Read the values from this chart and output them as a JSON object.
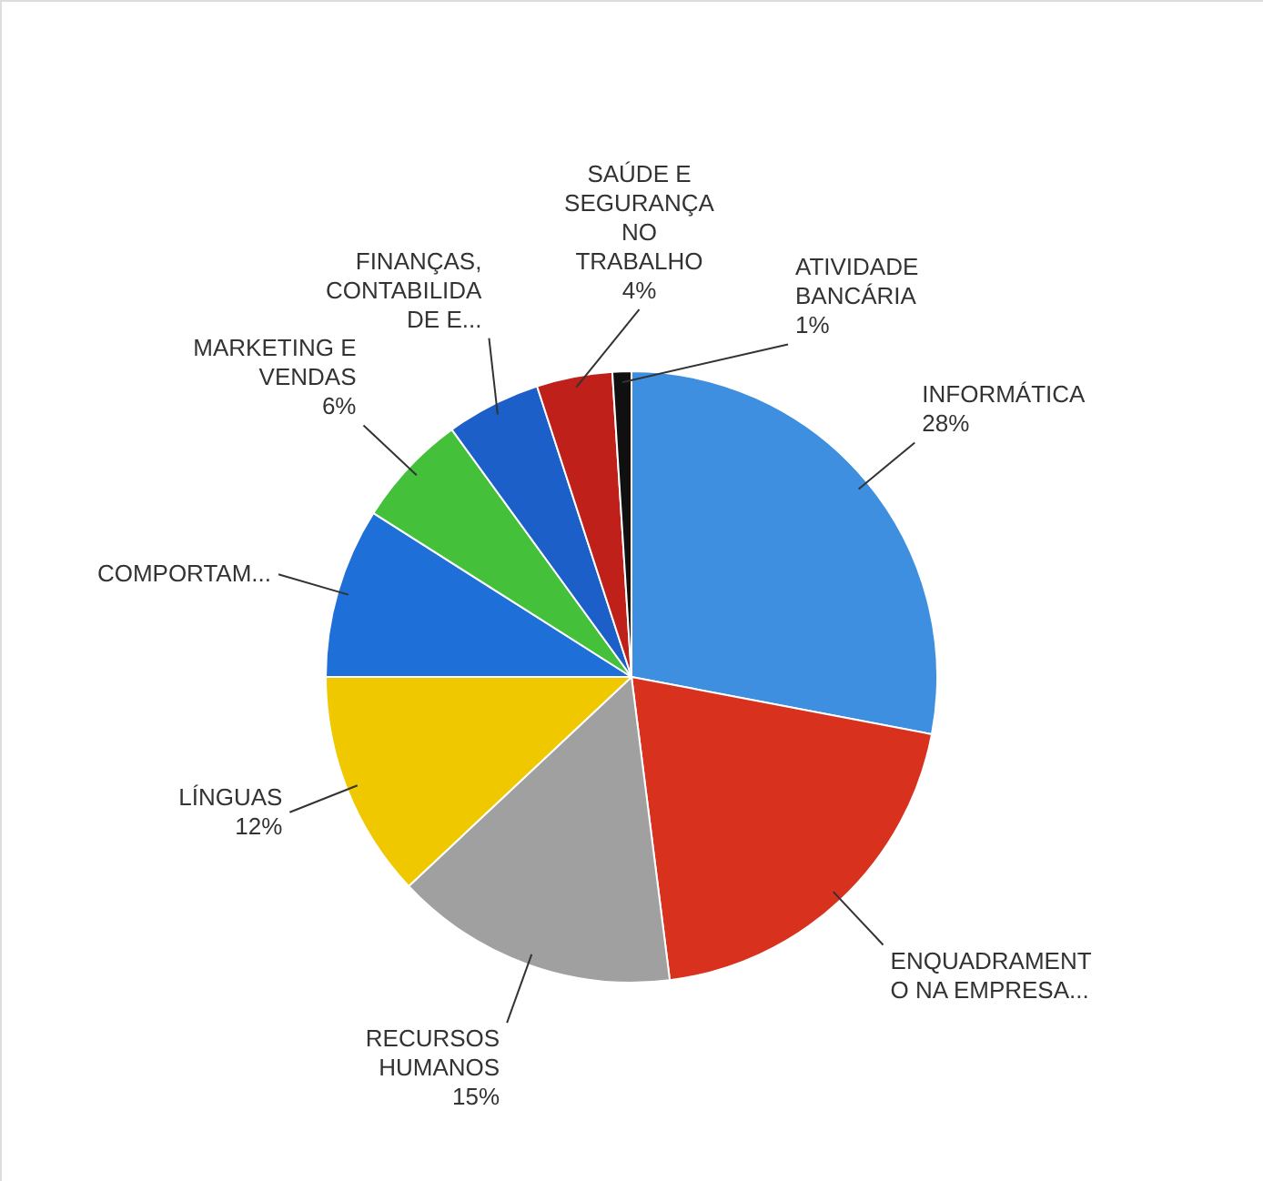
{
  "chart_data": {
    "type": "pie",
    "categories": [
      "INFORMÁTICA",
      "ENQUADRAMENT\nO NA EMPRESA...",
      "RECURSOS\nHUMANOS",
      "LÍNGUAS",
      "COMPORTAM...",
      "MARKETING E\nVENDAS",
      "FINANÇAS,\nCONTABILIDA\nDE E...",
      "SAÚDE E\nSEGURANÇA\nNO\nTRABALHO",
      "ATIVIDADE\nBANCÁRIA"
    ],
    "values": [
      28,
      20,
      15,
      12,
      9,
      6,
      5,
      4,
      1
    ],
    "colors": [
      "#3f8fe0",
      "#d8321e",
      "#a0a0a0",
      "#f0c800",
      "#1f6fd8",
      "#44c03a",
      "#1c5fc8",
      "#c0201a",
      "#101010"
    ],
    "value_labels": [
      "28%",
      null,
      "15%",
      "12%",
      null,
      "6%",
      null,
      "4%",
      "1%"
    ]
  }
}
